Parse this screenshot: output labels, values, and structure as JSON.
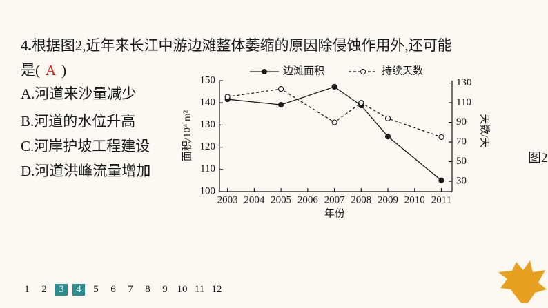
{
  "question": {
    "number": "4.",
    "line1": "根据图2,近年来长江中游边滩整体萎缩的原因除侵蚀作用外,还可能",
    "line2_start": "是(",
    "answer": "A",
    "line2_end": ")",
    "options": [
      "A.河道来沙量减少",
      "B.河道的水位升高",
      "C.河岸护坡工程建设",
      "D.河道洪峰流量增加"
    ]
  },
  "figure_label": "图2",
  "pagination": [
    "1",
    "2",
    "3",
    "4",
    "5",
    "6",
    "7",
    "8",
    "9",
    "10",
    "11",
    "12"
  ],
  "chart_data": {
    "type": "line",
    "xlabel": "年份",
    "ylabel": "面积/10⁴ m²",
    "y2label": "天数/天",
    "x": [
      2003,
      2005,
      2007,
      2008,
      2009,
      2011
    ],
    "xlim": [
      2002.7,
      2011.4
    ],
    "xticks": [
      2003,
      2004,
      2005,
      2006,
      2007,
      2008,
      2009,
      2010,
      2011
    ],
    "ylim": [
      100,
      150
    ],
    "yticks": [
      100,
      110,
      120,
      130,
      140,
      150
    ],
    "y2lim": [
      19.5,
      132.5
    ],
    "y2ticks": [
      30,
      50,
      70,
      90,
      110,
      130
    ],
    "series": [
      {
        "name": "边滩面积",
        "color": "#1a1a1a",
        "marker": "filled",
        "dashed": false,
        "values": [
          141.6,
          139.1,
          147.2,
          138.8,
          124.8,
          105.0
        ]
      },
      {
        "name": "持续天数",
        "color": "#1a1a1a",
        "marker": "hollow",
        "dashed": true,
        "axis": "y2",
        "values": [
          116,
          124,
          90,
          110,
          94,
          75
        ]
      }
    ]
  }
}
